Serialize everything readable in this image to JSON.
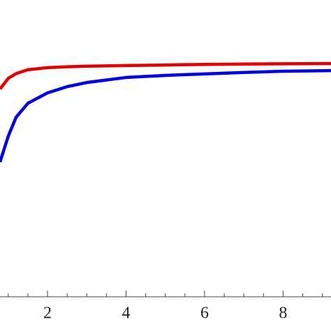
{
  "chart_data": {
    "type": "line",
    "x": [
      0.79,
      1,
      1.2,
      1.5,
      2,
      2.5,
      3,
      4,
      5,
      6,
      7,
      8,
      9.22
    ],
    "series": [
      {
        "name": "red",
        "color": "#e00000",
        "values": [
          0.7,
          0.736,
          0.752,
          0.765,
          0.772,
          0.775,
          0.777,
          0.779,
          0.781,
          0.783,
          0.784,
          0.785,
          0.786
        ]
      },
      {
        "name": "blue",
        "color": "#0000e0",
        "values": [
          0.454,
          0.541,
          0.605,
          0.652,
          0.687,
          0.708,
          0.722,
          0.739,
          0.746,
          0.751,
          0.756,
          0.76,
          0.762
        ]
      }
    ],
    "xlim": [
      0.79,
      9.22
    ],
    "ylim": [
      0,
      1
    ],
    "xticks": [
      2,
      4,
      6,
      8
    ],
    "xminorticks": [
      1,
      1.5,
      2.5,
      3,
      3.5,
      4.5,
      5,
      5.5,
      6.5,
      7,
      7.5,
      8.5,
      9
    ]
  }
}
